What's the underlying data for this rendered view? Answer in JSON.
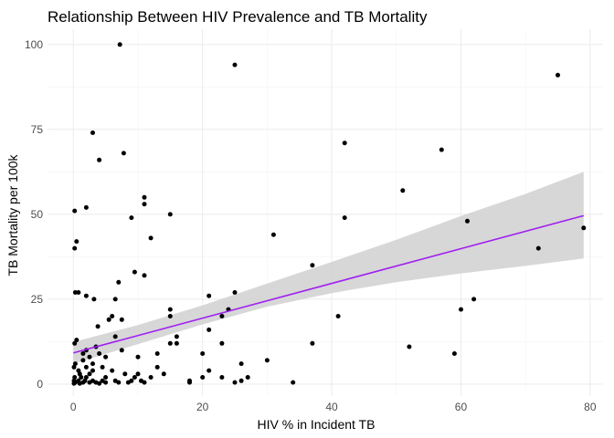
{
  "chart_data": {
    "type": "scatter",
    "title": "Relationship Between HIV Prevalence and TB Mortality",
    "xlabel": "HIV % in Incident TB",
    "ylabel": "TB Mortality per 100k",
    "xlim": [
      -4,
      82
    ],
    "ylim": [
      -3.5,
      104.5
    ],
    "x_ticks": [
      0,
      20,
      40,
      60,
      80
    ],
    "y_ticks": [
      0,
      25,
      50,
      75,
      100
    ],
    "grid": true,
    "colors": {
      "points": "#000000",
      "fit_line": "#a020f0",
      "confidence_band": "#d3d3d3"
    },
    "points": [
      {
        "x": 7.2,
        "y": 100
      },
      {
        "x": 25,
        "y": 94
      },
      {
        "x": 75,
        "y": 91
      },
      {
        "x": 3,
        "y": 74
      },
      {
        "x": 42,
        "y": 71
      },
      {
        "x": 57,
        "y": 69
      },
      {
        "x": 7.8,
        "y": 68
      },
      {
        "x": 4,
        "y": 66
      },
      {
        "x": 51,
        "y": 57
      },
      {
        "x": 11,
        "y": 55
      },
      {
        "x": 11,
        "y": 53
      },
      {
        "x": 2,
        "y": 52
      },
      {
        "x": 0.2,
        "y": 51
      },
      {
        "x": 15,
        "y": 50
      },
      {
        "x": 9,
        "y": 49
      },
      {
        "x": 42,
        "y": 49
      },
      {
        "x": 61,
        "y": 48
      },
      {
        "x": 79,
        "y": 46
      },
      {
        "x": 31,
        "y": 44
      },
      {
        "x": 12,
        "y": 43
      },
      {
        "x": 0.5,
        "y": 42
      },
      {
        "x": 0.2,
        "y": 40
      },
      {
        "x": 72,
        "y": 40
      },
      {
        "x": 37,
        "y": 35
      },
      {
        "x": 9.5,
        "y": 33
      },
      {
        "x": 11,
        "y": 32
      },
      {
        "x": 7,
        "y": 30
      },
      {
        "x": 0.3,
        "y": 27
      },
      {
        "x": 0.8,
        "y": 27
      },
      {
        "x": 25,
        "y": 27
      },
      {
        "x": 2,
        "y": 26
      },
      {
        "x": 3.2,
        "y": 25
      },
      {
        "x": 6.5,
        "y": 25
      },
      {
        "x": 21,
        "y": 26
      },
      {
        "x": 62,
        "y": 25
      },
      {
        "x": 24,
        "y": 22
      },
      {
        "x": 15,
        "y": 22
      },
      {
        "x": 60,
        "y": 22
      },
      {
        "x": 6,
        "y": 20
      },
      {
        "x": 15,
        "y": 20
      },
      {
        "x": 23,
        "y": 20
      },
      {
        "x": 41,
        "y": 20
      },
      {
        "x": 7.5,
        "y": 19
      },
      {
        "x": 5.5,
        "y": 19
      },
      {
        "x": 3.8,
        "y": 17
      },
      {
        "x": 21,
        "y": 16
      },
      {
        "x": 6.5,
        "y": 14
      },
      {
        "x": 16,
        "y": 14
      },
      {
        "x": 0.5,
        "y": 13
      },
      {
        "x": 0.2,
        "y": 12
      },
      {
        "x": 15,
        "y": 12
      },
      {
        "x": 16,
        "y": 12
      },
      {
        "x": 23,
        "y": 12
      },
      {
        "x": 37,
        "y": 12
      },
      {
        "x": 52,
        "y": 11
      },
      {
        "x": 3.5,
        "y": 11
      },
      {
        "x": 2,
        "y": 10
      },
      {
        "x": 7.5,
        "y": 10
      },
      {
        "x": 1.5,
        "y": 9
      },
      {
        "x": 4,
        "y": 9
      },
      {
        "x": 13,
        "y": 9
      },
      {
        "x": 20,
        "y": 9
      },
      {
        "x": 59,
        "y": 9
      },
      {
        "x": 2.5,
        "y": 8
      },
      {
        "x": 5,
        "y": 8
      },
      {
        "x": 10,
        "y": 8
      },
      {
        "x": 1.5,
        "y": 7
      },
      {
        "x": 30,
        "y": 7
      },
      {
        "x": 0.3,
        "y": 6
      },
      {
        "x": 3,
        "y": 6
      },
      {
        "x": 26,
        "y": 6
      },
      {
        "x": 0.1,
        "y": 5
      },
      {
        "x": 2,
        "y": 5
      },
      {
        "x": 4.5,
        "y": 5
      },
      {
        "x": 13,
        "y": 5
      },
      {
        "x": 0.8,
        "y": 4
      },
      {
        "x": 3,
        "y": 4
      },
      {
        "x": 6,
        "y": 4
      },
      {
        "x": 21,
        "y": 4
      },
      {
        "x": 1,
        "y": 3
      },
      {
        "x": 2.5,
        "y": 3
      },
      {
        "x": 8,
        "y": 3
      },
      {
        "x": 10,
        "y": 3
      },
      {
        "x": 14,
        "y": 3
      },
      {
        "x": 0.2,
        "y": 2
      },
      {
        "x": 1.2,
        "y": 2
      },
      {
        "x": 2,
        "y": 2
      },
      {
        "x": 5,
        "y": 2
      },
      {
        "x": 9.5,
        "y": 2
      },
      {
        "x": 12,
        "y": 2
      },
      {
        "x": 20,
        "y": 2
      },
      {
        "x": 23,
        "y": 2
      },
      {
        "x": 27,
        "y": 2
      },
      {
        "x": 0.1,
        "y": 1
      },
      {
        "x": 0.8,
        "y": 1
      },
      {
        "x": 1.8,
        "y": 1
      },
      {
        "x": 3,
        "y": 1
      },
      {
        "x": 4.5,
        "y": 1
      },
      {
        "x": 6.5,
        "y": 1
      },
      {
        "x": 9,
        "y": 1
      },
      {
        "x": 10.5,
        "y": 1
      },
      {
        "x": 18,
        "y": 1
      },
      {
        "x": 0.3,
        "y": 0.5
      },
      {
        "x": 1.5,
        "y": 0.5
      },
      {
        "x": 2.5,
        "y": 0.5
      },
      {
        "x": 3.5,
        "y": 0.5
      },
      {
        "x": 5,
        "y": 0.5
      },
      {
        "x": 7,
        "y": 0.5
      },
      {
        "x": 8.5,
        "y": 0.5
      },
      {
        "x": 11,
        "y": 0.5
      },
      {
        "x": 18,
        "y": 0.5
      },
      {
        "x": 25,
        "y": 0.5
      },
      {
        "x": 26,
        "y": 1
      },
      {
        "x": 34,
        "y": 0.5
      },
      {
        "x": 0.1,
        "y": 0.2
      },
      {
        "x": 1,
        "y": 0.2
      },
      {
        "x": 4,
        "y": 0.2
      }
    ],
    "fit_line": {
      "x": [
        0,
        79
      ],
      "y": [
        9.2,
        49.6
      ]
    },
    "confidence_band": {
      "x": [
        0,
        10,
        20,
        30,
        40,
        50,
        60,
        70,
        79
      ],
      "lower": [
        6.0,
        11.8,
        17.6,
        22.8,
        26.8,
        30.0,
        32.6,
        34.8,
        37.0
      ],
      "upper": [
        12.4,
        17.4,
        23.2,
        29.6,
        36.0,
        42.5,
        49.5,
        56.0,
        62.5
      ]
    }
  }
}
